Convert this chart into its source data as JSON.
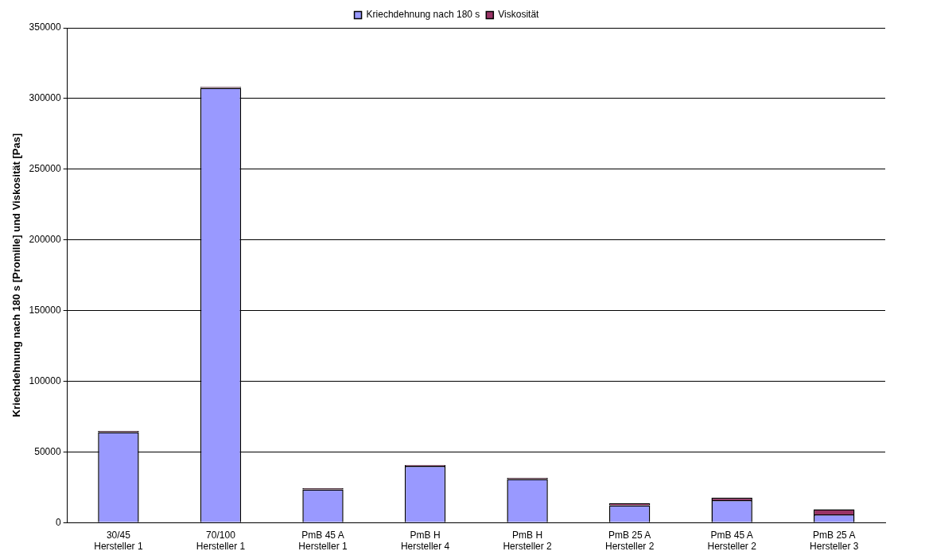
{
  "chart_data": {
    "type": "bar",
    "stacked": true,
    "ylabel": "Kriechdehnung nach 180 s [Promille] und Viskosität [Pas]",
    "categories": [
      "30/45\nHersteller 1",
      "70/100\nHersteller 1",
      "PmB 45 A\nHersteller 1",
      "PmB H\nHersteller 4",
      "PmB H\nHersteller 2",
      "PmB 25 A\nHersteller 2",
      "PmB 45 A\nHersteller 2",
      "PmB 25 A\nHersteller 3"
    ],
    "series": [
      {
        "name": "Kriechdehnung nach 180 s",
        "color": "#9999ff",
        "values": [
          64000,
          307500,
          23500,
          40000,
          30800,
          12200,
          15800,
          5800
        ]
      },
      {
        "name": "Viskosität",
        "color": "#993366",
        "values": [
          800,
          800,
          800,
          800,
          800,
          1600,
          1800,
          3600
        ]
      }
    ],
    "ylim": [
      0,
      350000
    ],
    "yticks": [
      0,
      50000,
      100000,
      150000,
      200000,
      250000,
      300000,
      350000
    ],
    "grid": "y",
    "legend": "top"
  }
}
